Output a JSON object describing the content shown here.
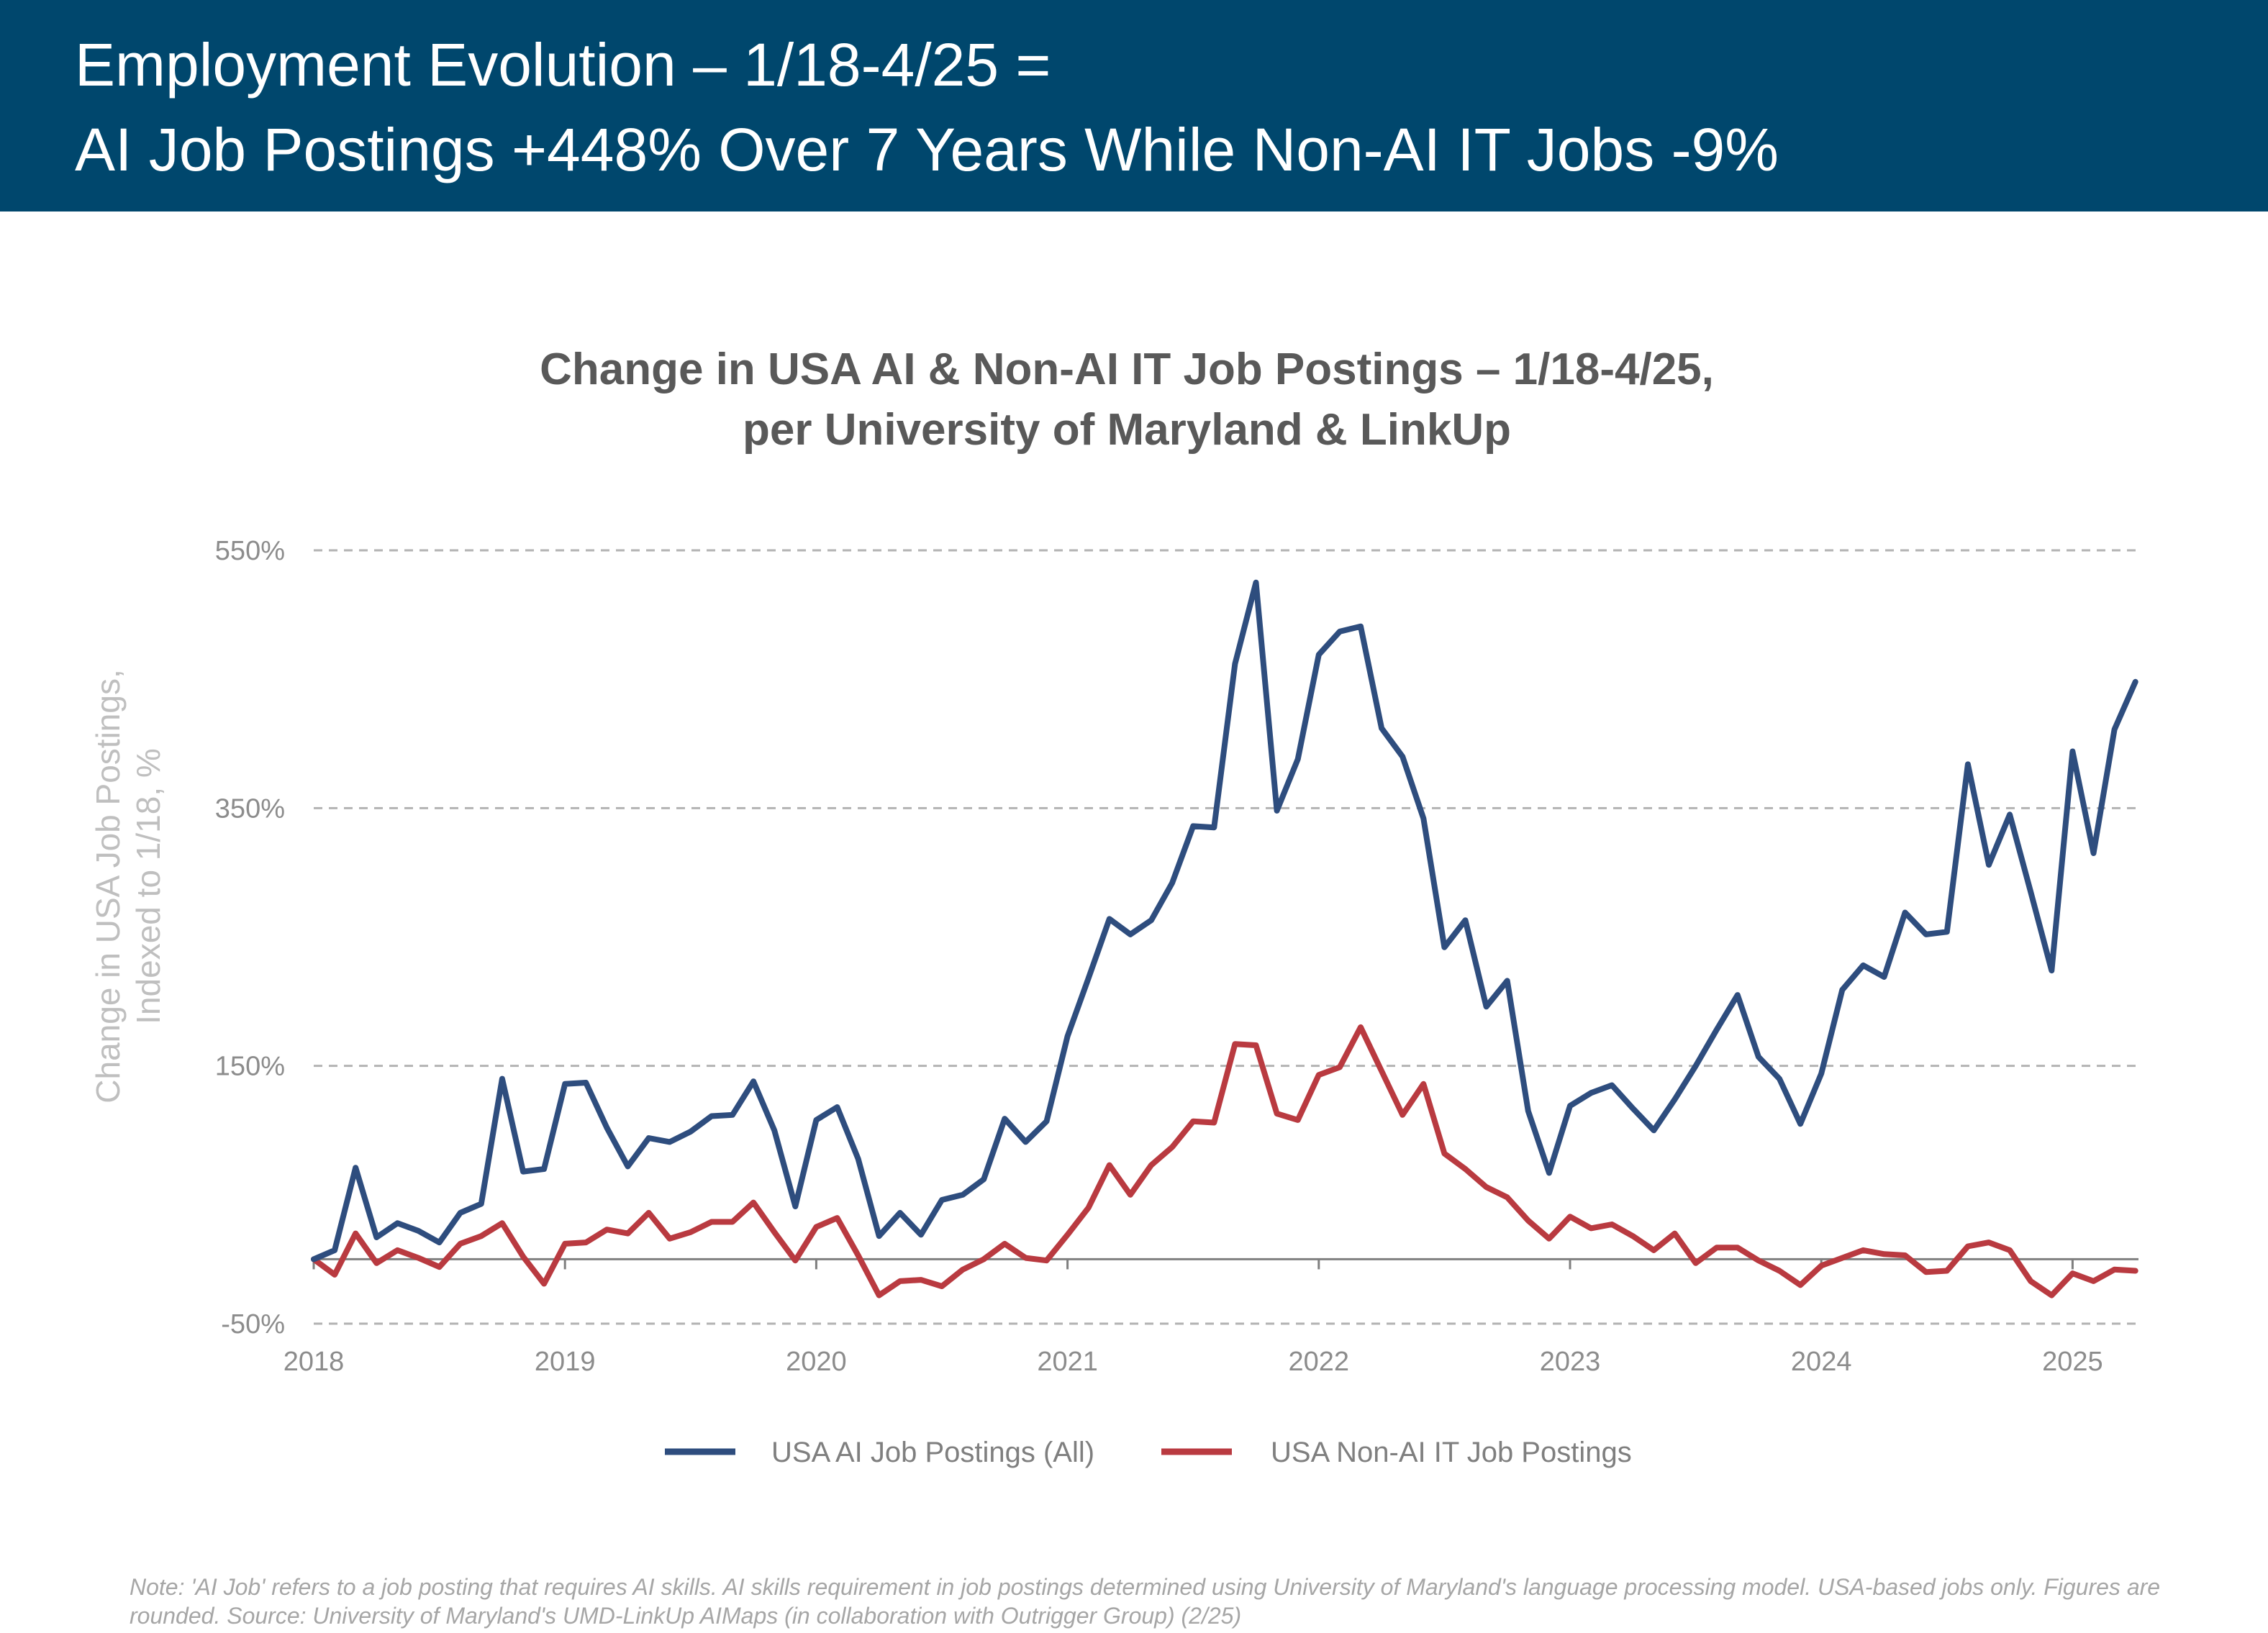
{
  "header": {
    "line1": "Employment Evolution – 1/18-4/25 =",
    "line2": "AI Job Postings +448% Over 7 Years While Non-AI IT Jobs -9%"
  },
  "colors": {
    "header_bg": "#00476D",
    "ai_series": "#2E4D7E",
    "nonai_series": "#B93A40"
  },
  "note": "Note: 'AI Job' refers to a job posting that requires AI skills. AI skills requirement in job postings determined using University of Maryland's language processing model. USA-based jobs only. Figures are rounded. Source: University of Maryland's UMD-LinkUp AIMaps (in collaboration with Outrigger Group) (2/25)",
  "chart_data": {
    "type": "line",
    "title": "Change in USA AI & Non-AI IT Job Postings – 1/18-4/25,",
    "subtitle": "per University of Maryland & LinkUp",
    "ylabel_line1": "Change in USA Job Postings,",
    "ylabel_line2": "Indexed to 1/18, %",
    "xlabel": "",
    "x_start": "2018-01",
    "x_end": "2025-04",
    "x_ticks": [
      "2018",
      "2019",
      "2020",
      "2021",
      "2022",
      "2023",
      "2024",
      "2025"
    ],
    "y_ticks": [
      "550%",
      "350%",
      "150%",
      "-50%"
    ],
    "y_tick_values": [
      550,
      350,
      150,
      -50
    ],
    "ylim": [
      -50,
      550
    ],
    "grid": "horizontal-dashed",
    "legend_position": "bottom-center",
    "series": [
      {
        "name": "USA AI Job Postings (All)",
        "color": "#2E4D7E",
        "values": [
          0,
          7,
          71,
          17,
          28,
          22,
          13,
          36,
          43,
          140,
          68,
          70,
          136,
          137,
          102,
          72,
          94,
          91,
          99,
          111,
          112,
          138,
          100,
          41,
          108,
          118,
          78,
          18,
          36,
          19,
          46,
          50,
          62,
          109,
          91,
          107,
          173,
          218,
          264,
          252,
          263,
          292,
          336,
          335,
          462,
          525,
          348,
          388,
          469,
          487,
          491,
          412,
          390,
          342,
          242,
          263,
          196,
          216,
          115,
          67,
          119,
          129,
          135,
          117,
          100,
          124,
          150,
          178,
          205,
          157,
          140,
          105,
          144,
          209,
          228,
          219,
          269,
          252,
          254,
          384,
          306,
          345,
          285,
          224,
          394,
          315,
          411,
          448
        ]
      },
      {
        "name": "USA Non-AI IT Job Postings",
        "color": "#B93A40",
        "values": [
          0,
          -12,
          20,
          -3,
          7,
          1,
          -6,
          12,
          18,
          28,
          2,
          -19,
          12,
          13,
          23,
          20,
          36,
          16,
          21,
          29,
          29,
          44,
          21,
          -1,
          25,
          32,
          3,
          -28,
          -17,
          -16,
          -21,
          -8,
          0,
          12,
          1,
          -1,
          19,
          40,
          73,
          50,
          73,
          87,
          107,
          106,
          167,
          166,
          113,
          108,
          143,
          149,
          180,
          146,
          112,
          136,
          82,
          70,
          56,
          48,
          30,
          16,
          33,
          24,
          27,
          18,
          7,
          20,
          -3,
          9,
          9,
          -1,
          -9,
          -20,
          -5,
          1,
          7,
          4,
          3,
          -10,
          -9,
          10,
          13,
          7,
          -17,
          -28,
          -11,
          -17,
          -8,
          -9
        ]
      }
    ]
  }
}
